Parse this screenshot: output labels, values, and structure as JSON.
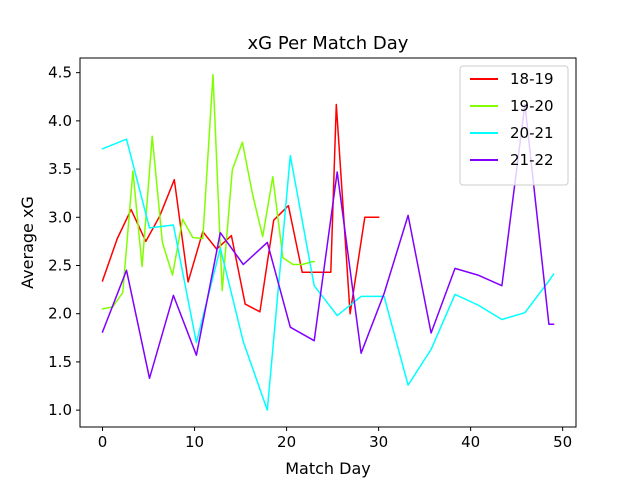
{
  "chart_data": {
    "type": "line",
    "title": "xG Per Match Day",
    "xlabel": "Match Day",
    "ylabel": "Average xG",
    "xlim": [
      -2.45,
      51.45
    ],
    "ylim": [
      0.825,
      4.652
    ],
    "x_ticks": [
      0,
      10,
      20,
      30,
      40,
      50
    ],
    "x_tick_labels": [
      "0",
      "10",
      "20",
      "30",
      "40",
      "50"
    ],
    "y_ticks": [
      1.0,
      1.5,
      2.0,
      2.5,
      3.0,
      3.5,
      4.0,
      4.5
    ],
    "y_tick_labels": [
      "1.0",
      "1.5",
      "2.0",
      "2.5",
      "3.0",
      "3.5",
      "4.0",
      "4.5"
    ],
    "grid": false,
    "legend_position": "top-right",
    "series": [
      {
        "name": "18-19",
        "color": "#ff0000",
        "x": [
          0,
          1.6,
          3.1,
          4.7,
          6.2,
          7.8,
          9.3,
          10.9,
          12.4,
          14.0,
          15.5,
          17.1,
          18.6,
          20.2,
          21.7,
          23.3,
          24.8,
          25.4,
          26.9,
          28.5,
          30.0
        ],
        "y": [
          2.34,
          2.78,
          3.08,
          2.75,
          3.01,
          3.39,
          2.33,
          2.85,
          2.67,
          2.81,
          2.1,
          2.02,
          2.97,
          3.12,
          2.43,
          2.43,
          2.43,
          4.17,
          2.0,
          3.0,
          3.0
        ]
      },
      {
        "name": "19-20",
        "color": "#80ff00",
        "x": [
          0,
          1.1,
          2.2,
          3.3,
          4.3,
          5.4,
          6.5,
          7.6,
          8.7,
          9.8,
          10.9,
          12.0,
          13.0,
          14.1,
          15.2,
          16.3,
          17.4,
          18.5,
          19.6,
          20.7,
          21.7,
          22.8,
          23.0
        ],
        "y": [
          2.05,
          2.07,
          2.22,
          3.48,
          2.49,
          3.84,
          2.74,
          2.4,
          2.98,
          2.79,
          2.78,
          4.48,
          2.24,
          3.49,
          3.78,
          3.24,
          2.8,
          3.42,
          2.58,
          2.51,
          2.51,
          2.54,
          2.54
        ]
      },
      {
        "name": "20-21",
        "color": "#00ffff",
        "x": [
          0,
          2.6,
          5.1,
          7.7,
          10.2,
          12.8,
          15.3,
          17.9,
          20.4,
          23.0,
          25.5,
          28.1,
          30.6,
          33.2,
          35.7,
          38.3,
          40.8,
          43.4,
          45.9,
          48.5,
          49.0
        ],
        "y": [
          3.71,
          3.81,
          2.89,
          2.92,
          1.7,
          2.68,
          1.71,
          1.0,
          3.64,
          2.29,
          1.98,
          2.18,
          2.18,
          1.26,
          1.63,
          2.2,
          2.09,
          1.94,
          2.01,
          2.34,
          2.41
        ]
      },
      {
        "name": "21-22",
        "color": "#8000ff",
        "x": [
          0,
          2.6,
          5.1,
          7.7,
          10.2,
          12.8,
          15.3,
          17.9,
          20.4,
          23.0,
          25.5,
          28.1,
          30.6,
          33.2,
          35.7,
          38.3,
          40.8,
          43.4,
          45.9,
          48.5,
          49.0
        ],
        "y": [
          1.81,
          2.45,
          1.33,
          2.19,
          1.57,
          2.84,
          2.51,
          2.74,
          1.86,
          1.72,
          3.47,
          1.59,
          2.21,
          3.02,
          1.8,
          2.47,
          2.4,
          2.29,
          4.17,
          1.89,
          1.89
        ]
      }
    ]
  }
}
